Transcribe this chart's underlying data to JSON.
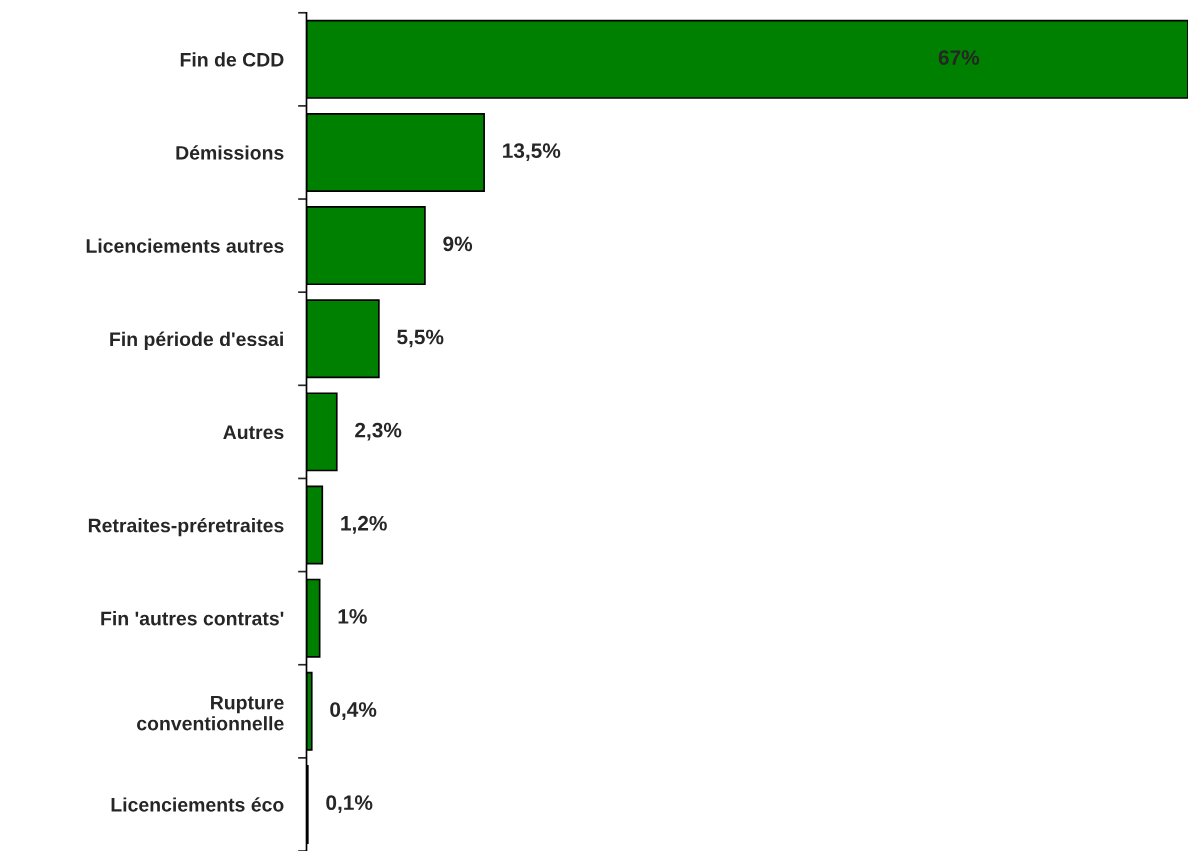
{
  "chart_data": {
    "type": "bar",
    "orientation": "horizontal",
    "categories": [
      "Fin de CDD",
      "Démissions",
      "Licenciements autres",
      "Fin période d'essai",
      "Autres",
      "Retraites-préretraites",
      "Fin 'autres contrats'",
      "Rupture\nconventionnelle",
      "Licenciements éco"
    ],
    "values": [
      67,
      13.5,
      9,
      5.5,
      2.3,
      1.2,
      1,
      0.4,
      0.1
    ],
    "value_labels": [
      "67%",
      "13,5%",
      "9%",
      "5,5%",
      "2,3%",
      "1,2%",
      "1%",
      "0,4%",
      "0,1%"
    ],
    "color": "#008000",
    "tick_labels": "y",
    "grid": false,
    "legend": false
  }
}
